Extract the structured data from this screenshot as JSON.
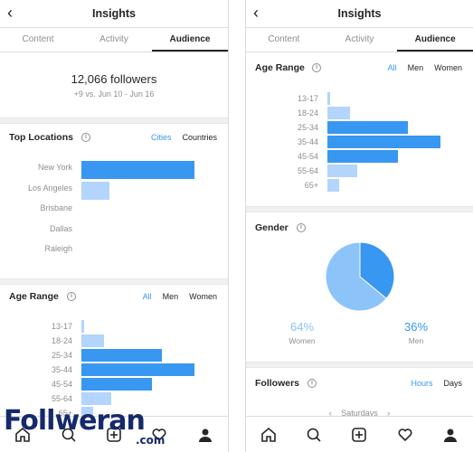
{
  "left": {
    "title": "Insights",
    "tabs": [
      "Content",
      "Activity",
      "Audience"
    ],
    "active_tab": 2,
    "followers": {
      "count": "12,066 followers",
      "delta": "+9 vs. Jun 10 - Jun 16"
    },
    "top_locations": {
      "title": "Top Locations",
      "toggles": [
        "Cities",
        "Countries"
      ],
      "active_toggle": 0,
      "items": [
        {
          "label": "New York",
          "value": 100,
          "strong": true
        },
        {
          "label": "Los Angeles",
          "value": 25,
          "strong": false
        },
        {
          "label": "Brisbane",
          "value": 0,
          "strong": false
        },
        {
          "label": "Dallas",
          "value": 0,
          "strong": false
        },
        {
          "label": "Raleigh",
          "value": 0,
          "strong": false
        }
      ]
    },
    "age_range": {
      "title": "Age Range",
      "toggles": [
        "All",
        "Men",
        "Women"
      ],
      "active_toggle": 0,
      "items": [
        {
          "label": "13-17",
          "value": 2,
          "strong": false
        },
        {
          "label": "18-24",
          "value": 20,
          "strong": false
        },
        {
          "label": "25-34",
          "value": 71,
          "strong": true
        },
        {
          "label": "35-44",
          "value": 100,
          "strong": true
        },
        {
          "label": "45-54",
          "value": 62,
          "strong": true
        },
        {
          "label": "55-64",
          "value": 26,
          "strong": false
        },
        {
          "label": "65+",
          "value": 10,
          "strong": false
        }
      ]
    }
  },
  "right": {
    "title": "Insights",
    "tabs": [
      "Content",
      "Activity",
      "Audience"
    ],
    "active_tab": 2,
    "age_range": {
      "title": "Age Range",
      "toggles": [
        "All",
        "Men",
        "Women"
      ],
      "active_toggle": 0,
      "items": [
        {
          "label": "13-17",
          "value": 2,
          "strong": false
        },
        {
          "label": "18-24",
          "value": 20,
          "strong": false
        },
        {
          "label": "25-34",
          "value": 71,
          "strong": true
        },
        {
          "label": "35-44",
          "value": 100,
          "strong": true
        },
        {
          "label": "45-54",
          "value": 62,
          "strong": true
        },
        {
          "label": "55-64",
          "value": 26,
          "strong": false
        },
        {
          "label": "65+",
          "value": 10,
          "strong": false
        }
      ]
    },
    "gender": {
      "title": "Gender",
      "women": {
        "pct": "64%",
        "label": "Women",
        "value": 64
      },
      "men": {
        "pct": "36%",
        "label": "Men",
        "value": 36
      }
    },
    "followers_section": {
      "title": "Followers",
      "toggles": [
        "Hours",
        "Days"
      ],
      "active_toggle": 0,
      "day": "Saturdays"
    }
  },
  "colors": {
    "strong_bar": "#3897f0",
    "light_bar": "#b3d4fc",
    "accent": "#3897f0",
    "women": "#8cc4fa",
    "men": "#3897f0"
  },
  "icons": [
    "back-chevron-icon",
    "info-icon",
    "home-icon",
    "search-icon",
    "new-post-icon",
    "heart-icon",
    "profile-icon"
  ],
  "watermark": {
    "brand": "Follweran",
    "suffix": ".com"
  }
}
